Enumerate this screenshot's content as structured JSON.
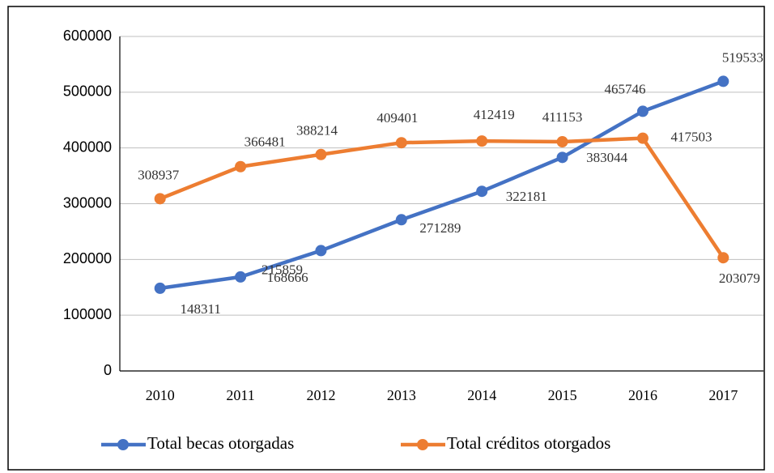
{
  "chart_data": {
    "type": "line",
    "categories": [
      "2010",
      "2011",
      "2012",
      "2013",
      "2014",
      "2015",
      "2016",
      "2017"
    ],
    "series": [
      {
        "name": "Total becas otorgadas",
        "color": "#4472c4",
        "values": [
          148311,
          168666,
          215859,
          271289,
          322181,
          383044,
          465746,
          519533
        ]
      },
      {
        "name": "Total créditos otorgados",
        "color": "#ed7d31",
        "values": [
          308937,
          366481,
          388214,
          409401,
          412419,
          411153,
          417503,
          203079
        ]
      }
    ],
    "ylim": [
      0,
      600000
    ],
    "yticks": [
      0,
      100000,
      200000,
      300000,
      400000,
      500000,
      600000
    ],
    "grid": true,
    "legend": "bottom"
  }
}
